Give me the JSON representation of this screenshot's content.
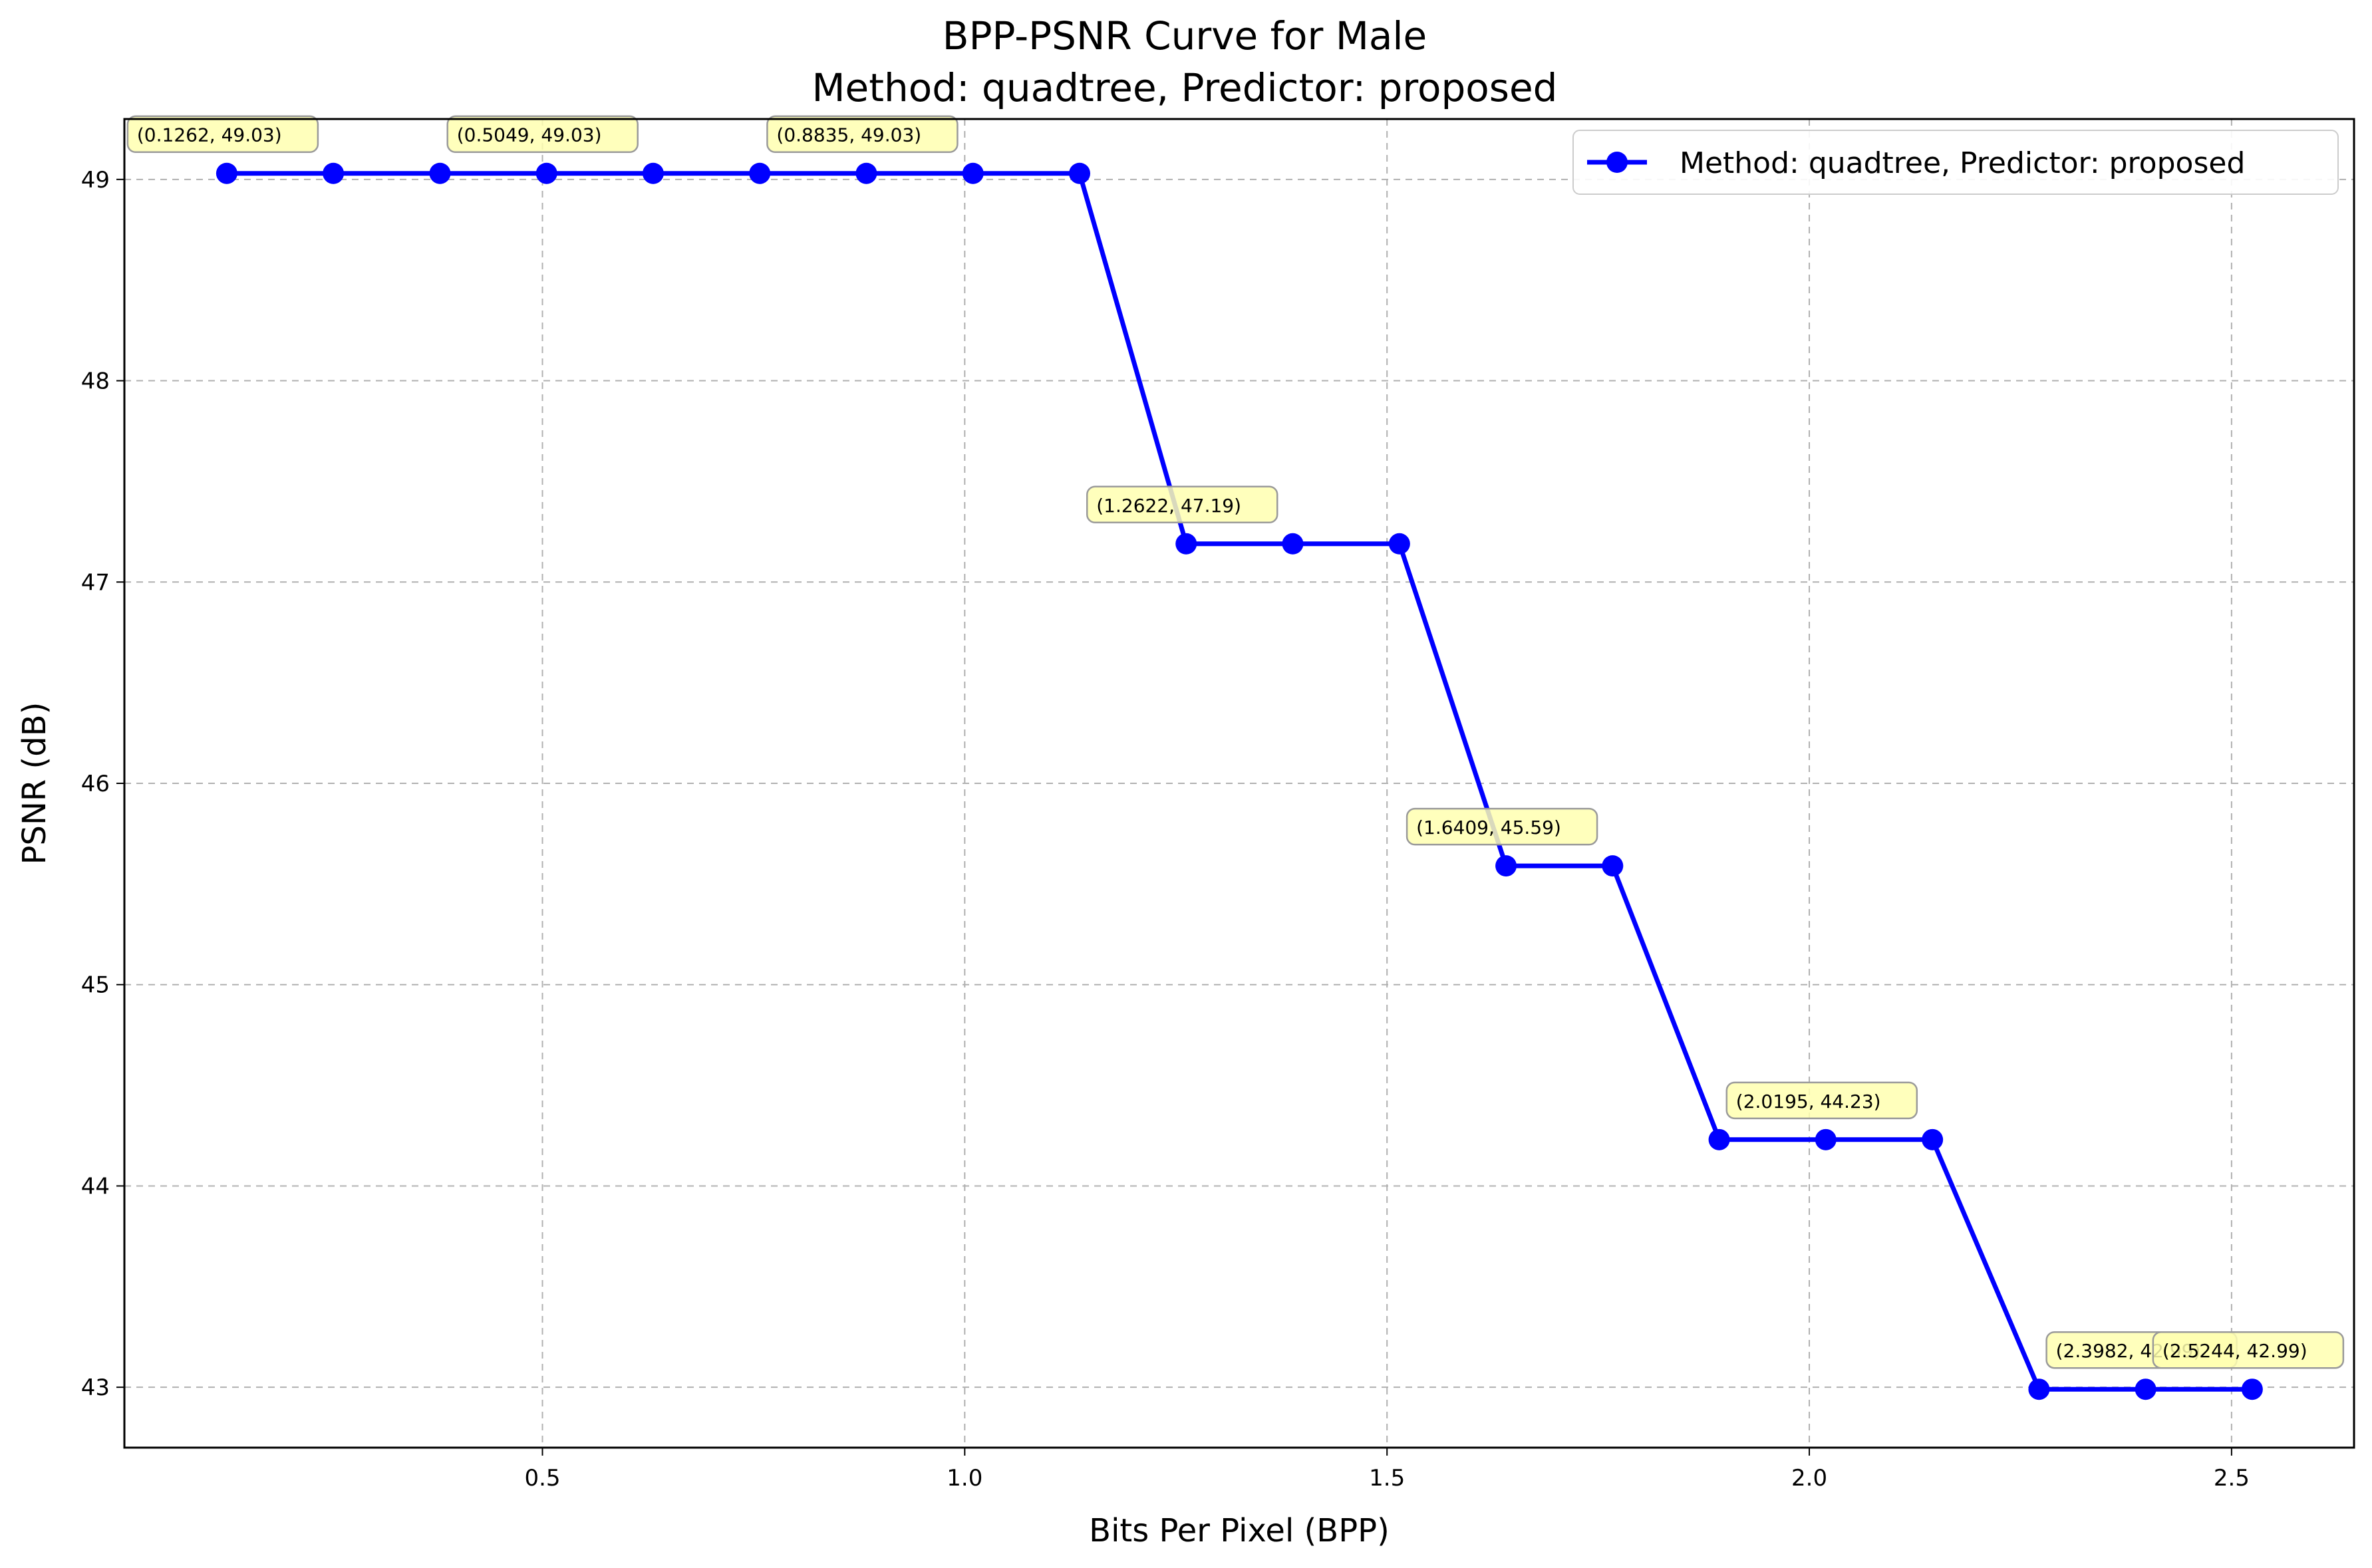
{
  "chart_data": {
    "type": "line",
    "title": "BPP-PSNR Curve for Male",
    "subtitle": "Method: quadtree, Predictor: proposed",
    "xlabel": "Bits Per Pixel (BPP)",
    "ylabel": "PSNR (dB)",
    "xlim": [
      0.005,
      2.645
    ],
    "ylim": [
      42.7,
      49.3
    ],
    "xticks": [
      "0.5",
      "1.0",
      "1.5",
      "2.0",
      "2.5"
    ],
    "yticks": [
      "43",
      "44",
      "45",
      "46",
      "47",
      "48",
      "49"
    ],
    "grid": true,
    "grid_style": "dashed",
    "legend_position": "top-right",
    "series": [
      {
        "name": "Method: quadtree, Predictor: proposed",
        "color": "#0000ff",
        "marker": "circle",
        "x": [
          0.1262,
          0.2524,
          0.3787,
          0.5049,
          0.6311,
          0.7573,
          0.8835,
          1.0098,
          1.136,
          1.2622,
          1.3884,
          1.5147,
          1.6409,
          1.7671,
          1.8933,
          2.0195,
          2.1458,
          2.272,
          2.3982,
          2.5244
        ],
        "y": [
          49.03,
          49.03,
          49.03,
          49.03,
          49.03,
          49.03,
          49.03,
          49.03,
          49.03,
          47.19,
          47.19,
          47.19,
          45.59,
          45.59,
          44.23,
          44.23,
          44.23,
          42.99,
          42.99,
          42.99
        ]
      }
    ],
    "annotations": [
      {
        "text": "(0.1262, 49.03)",
        "x": 0.1262,
        "y": 49.03
      },
      {
        "text": "(0.5049, 49.03)",
        "x": 0.5049,
        "y": 49.03
      },
      {
        "text": "(0.8835, 49.03)",
        "x": 0.8835,
        "y": 49.03
      },
      {
        "text": "(1.2622, 47.19)",
        "x": 1.2622,
        "y": 47.19
      },
      {
        "text": "(1.6409, 45.59)",
        "x": 1.6409,
        "y": 45.59
      },
      {
        "text": "(2.0195, 44.23)",
        "x": 2.0195,
        "y": 44.23
      },
      {
        "text": "(2.3982, 42.99)",
        "x": 2.3982,
        "y": 42.99
      },
      {
        "text": "(2.5244, 42.99)",
        "x": 2.5244,
        "y": 42.99
      }
    ],
    "annotation_style": {
      "box_fill": "#ffffb0",
      "box_stroke": "#9a9a9a"
    }
  }
}
